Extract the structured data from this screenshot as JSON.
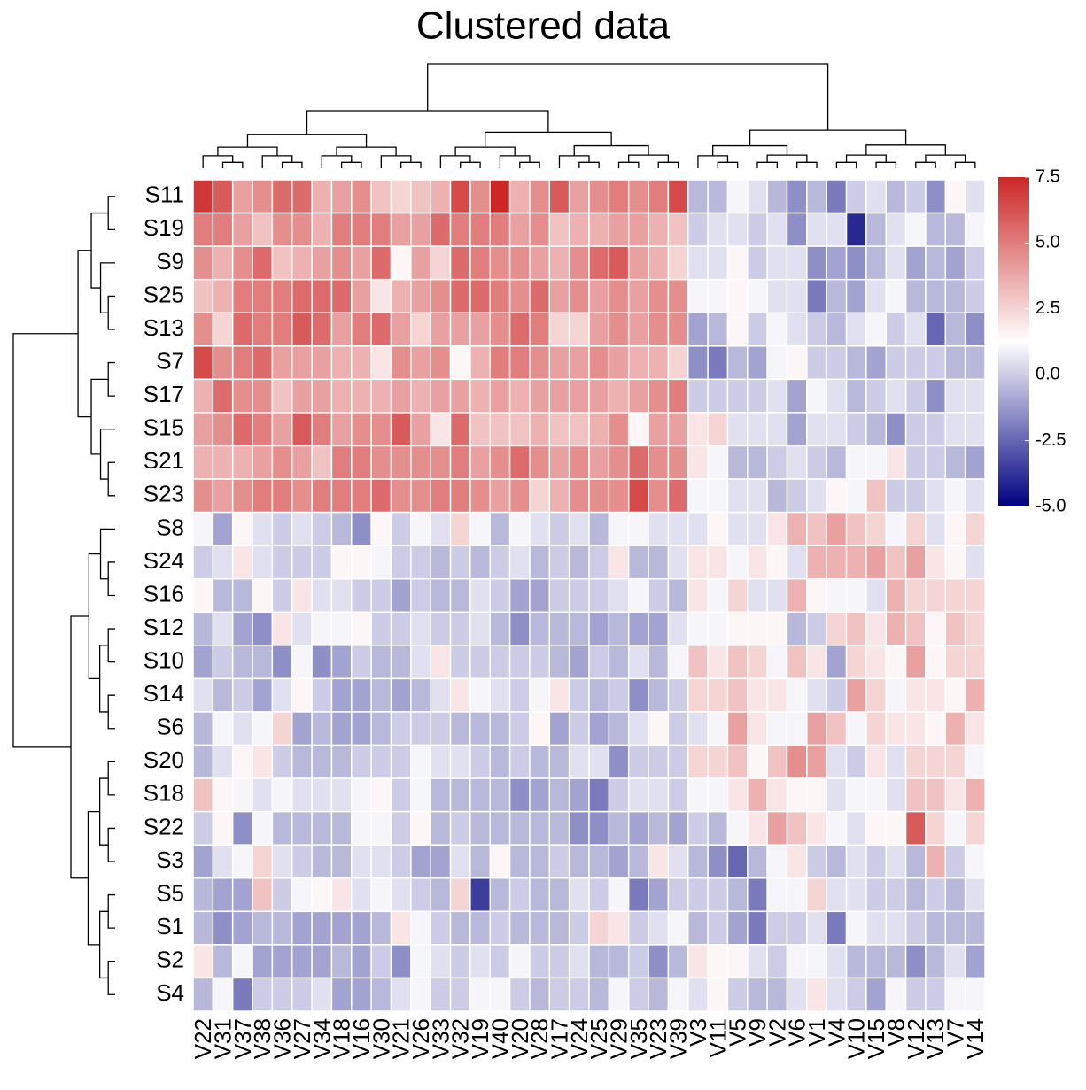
{
  "chart_data": {
    "type": "heatmap",
    "title": "Clustered data",
    "x": [
      "V22",
      "V31",
      "V37",
      "V38",
      "V36",
      "V27",
      "V34",
      "V18",
      "V16",
      "V30",
      "V21",
      "V26",
      "V33",
      "V32",
      "V19",
      "V40",
      "V20",
      "V28",
      "V17",
      "V24",
      "V25",
      "V29",
      "V35",
      "V23",
      "V39",
      "V3",
      "V11",
      "V5",
      "V9",
      "V2",
      "V6",
      "V1",
      "V4",
      "V10",
      "V15",
      "V8",
      "V12",
      "V13",
      "V7",
      "V14"
    ],
    "y": [
      "S11",
      "S19",
      "S9",
      "S25",
      "S13",
      "S7",
      "S17",
      "S15",
      "S21",
      "S23",
      "S8",
      "S24",
      "S16",
      "S12",
      "S10",
      "S14",
      "S6",
      "S20",
      "S18",
      "S22",
      "S3",
      "S5",
      "S1",
      "S2",
      "S4"
    ],
    "z": [
      [
        7,
        6,
        4,
        4.5,
        5.5,
        5.5,
        3.5,
        4,
        4.5,
        3,
        2.5,
        3,
        3.5,
        6.5,
        4.5,
        7.5,
        3.5,
        4.5,
        6,
        4,
        4.5,
        5,
        4.5,
        5,
        6.5,
        -0.5,
        -0.5,
        1,
        0.5,
        -0.5,
        -1.5,
        -0.5,
        -2,
        0,
        0.5,
        -0.5,
        0,
        -1.5,
        1.5,
        0.5
      ],
      [
        5,
        5,
        4,
        3,
        4.5,
        4.5,
        3.5,
        5,
        5,
        5,
        4,
        4,
        5.5,
        5,
        5,
        5,
        4,
        4.5,
        3,
        3.5,
        3.5,
        4,
        4,
        3.5,
        3,
        0,
        0.5,
        0.5,
        0,
        0.5,
        -1.5,
        0.5,
        0.5,
        -4,
        -0.5,
        0.5,
        1,
        -0.5,
        -0.5,
        1
      ],
      [
        4.5,
        3.5,
        4.5,
        5.5,
        3,
        3.5,
        4,
        4.5,
        4,
        5.5,
        1.5,
        4,
        2.5,
        5.5,
        5,
        4.5,
        4.5,
        4,
        3.5,
        4.5,
        5.5,
        6,
        4,
        3.5,
        2.5,
        0.5,
        0.5,
        1.5,
        0,
        0.5,
        0.5,
        -1.5,
        -1,
        -1.5,
        -0.5,
        0.5,
        -1,
        -0.5,
        -1,
        0
      ],
      [
        3,
        3.5,
        5,
        5,
        5,
        5.5,
        5.5,
        5.5,
        4,
        2,
        3.5,
        4,
        4.5,
        5.5,
        5.5,
        5,
        4.5,
        5.5,
        4,
        4.5,
        4,
        4.5,
        4,
        4.5,
        4.5,
        1,
        1,
        1.5,
        1,
        0.5,
        0.5,
        -2,
        -0.5,
        -1,
        0.5,
        1,
        -0.5,
        -0.5,
        -0.5,
        0
      ],
      [
        4.5,
        2.5,
        5.5,
        5,
        5,
        6,
        5.5,
        4,
        5,
        5.5,
        4,
        2.5,
        4,
        4,
        4,
        4.5,
        5.5,
        5,
        2.5,
        2.5,
        4,
        4.5,
        4,
        4.5,
        4.5,
        -1,
        -0.5,
        1.5,
        0,
        1,
        0.5,
        0,
        -0.5,
        0.5,
        1,
        0,
        0.5,
        -2.5,
        -0.5,
        -1.5
      ],
      [
        6.5,
        4.5,
        5,
        5.5,
        4,
        4,
        4,
        3.5,
        3.5,
        2,
        4.5,
        4,
        4.5,
        1.5,
        3.5,
        5,
        5,
        4.5,
        4,
        4,
        4.5,
        4,
        3.5,
        3.5,
        2.5,
        -1.5,
        -2,
        -0.5,
        -1,
        1,
        1.5,
        0,
        0,
        -0.5,
        -1,
        0,
        0,
        0,
        -0.5,
        -0.5
      ],
      [
        3.5,
        5.5,
        4.5,
        4.5,
        3,
        4,
        4,
        3.5,
        3.5,
        3.5,
        4,
        3.5,
        4,
        4,
        3.5,
        4,
        3.5,
        4,
        4,
        4,
        4,
        3.5,
        4,
        4.5,
        5,
        0,
        0,
        0,
        0,
        0.5,
        -1,
        1,
        0.5,
        -0.5,
        0,
        0.5,
        0,
        -1.5,
        0.5,
        0.5
      ],
      [
        4,
        4.5,
        5.5,
        5,
        4,
        6,
        5,
        4,
        4.5,
        4.5,
        6,
        4,
        2,
        5.5,
        3,
        3,
        3,
        3.5,
        3,
        3,
        3.5,
        4.5,
        1.5,
        4,
        4,
        2,
        2.5,
        0.5,
        0.5,
        0.5,
        -1,
        0.5,
        0.5,
        0,
        -0.5,
        -1.5,
        0,
        0,
        0.5,
        0.5
      ],
      [
        3.5,
        3.5,
        3.5,
        4,
        4.5,
        4,
        3,
        5,
        5,
        4.5,
        4.5,
        4.5,
        4.5,
        5,
        4,
        4.5,
        5.5,
        4.5,
        4,
        4.5,
        4,
        4.5,
        5.5,
        4.5,
        4.5,
        2,
        1,
        -0.5,
        -0.5,
        0,
        0.5,
        0,
        -0.5,
        1,
        1,
        2,
        0,
        0,
        -0.5,
        -1
      ],
      [
        4.5,
        4,
        4.5,
        5,
        5,
        4.5,
        5,
        5,
        5,
        5.5,
        4.5,
        4.5,
        5,
        5,
        4.5,
        4,
        4.5,
        2.5,
        3.5,
        4.5,
        4.5,
        4.5,
        6.5,
        4.5,
        5.5,
        1,
        1,
        0.5,
        0.5,
        -0.5,
        0,
        0.5,
        1.5,
        1,
        3,
        0,
        0,
        0.5,
        1,
        0.5
      ],
      [
        1,
        -1,
        1.5,
        0.5,
        0,
        0.5,
        0,
        -0.5,
        -1.5,
        1.5,
        0,
        1,
        0.5,
        2.5,
        1,
        -0.5,
        1,
        0.5,
        0,
        0.5,
        -0.5,
        1,
        1,
        0.5,
        0.5,
        0.5,
        1.5,
        0.5,
        0.5,
        2,
        3.5,
        3,
        4,
        3,
        2.5,
        1,
        2.5,
        0.5,
        1.5,
        2.5
      ],
      [
        0,
        0.5,
        2,
        0.5,
        0,
        0,
        0,
        1.5,
        1.5,
        1,
        0,
        0,
        -0.5,
        0,
        -0.5,
        0,
        0.5,
        -0.5,
        0,
        -0.5,
        0,
        2,
        -0.5,
        -0.5,
        0.5,
        2,
        2,
        1,
        2,
        1.5,
        0.5,
        3.5,
        3.5,
        3.5,
        4,
        3,
        4,
        2,
        1.5,
        0.5
      ],
      [
        1.5,
        -0.5,
        -0.5,
        1.5,
        0,
        2,
        0.5,
        0.5,
        0,
        0,
        -1,
        0,
        -0.5,
        -0.5,
        0.5,
        0,
        -1,
        -1,
        0,
        0,
        0,
        0.5,
        1,
        0,
        -0.5,
        2,
        1,
        2.5,
        0.5,
        0.5,
        3.5,
        1.5,
        1,
        1,
        0.5,
        3.5,
        2.5,
        2.5,
        2.5,
        2.5
      ],
      [
        -0.5,
        0.5,
        -1,
        -1.5,
        2,
        0.5,
        1,
        1,
        1.5,
        0,
        0,
        0.5,
        0,
        0,
        0.5,
        -0.5,
        -1.5,
        -0.5,
        -0.5,
        -0.5,
        -1,
        -0.5,
        -1,
        -1,
        0.5,
        1,
        1,
        1.5,
        1.5,
        1.5,
        -0.5,
        0,
        2.5,
        3,
        2,
        3.5,
        3,
        1.5,
        3,
        2.5
      ],
      [
        -1,
        0,
        -0.5,
        -0.5,
        -1.5,
        1,
        -1.5,
        -1,
        0,
        -0.5,
        -0.5,
        0.5,
        2,
        0,
        0,
        0,
        0,
        0,
        -0.5,
        -1,
        0,
        -0.5,
        0.5,
        -0.5,
        1,
        3,
        2,
        3,
        2.5,
        1,
        3,
        2,
        -1,
        2.5,
        2,
        1.5,
        4,
        1.5,
        2.5,
        2.5
      ],
      [
        0.5,
        -0.5,
        0,
        -1,
        0.5,
        1.5,
        0,
        -1,
        -1,
        -0.5,
        -1,
        -0.5,
        0.5,
        2,
        1,
        0.5,
        0,
        1,
        2,
        0,
        -0.5,
        0,
        -1.5,
        -0.5,
        0,
        2.5,
        2.5,
        3,
        2,
        2,
        1,
        0.5,
        0,
        4,
        2.5,
        1,
        2,
        2,
        1.5,
        3.5
      ],
      [
        -0.5,
        1,
        0.5,
        1,
        2.5,
        -1,
        -0.5,
        -1,
        -1,
        -0.5,
        0,
        0,
        0,
        -0.5,
        -0.5,
        -0.5,
        0,
        1.5,
        -1,
        0,
        -1,
        -0.5,
        0.5,
        1.5,
        0,
        0.5,
        1,
        4,
        2,
        1,
        1,
        4,
        3,
        1,
        2.5,
        2,
        2,
        1.5,
        3.5,
        2
      ],
      [
        -0.5,
        0.5,
        1.5,
        2,
        0,
        -0.5,
        -0.5,
        -0.5,
        0,
        0,
        0,
        1,
        0.5,
        0.5,
        0,
        -0.5,
        0,
        -0.5,
        -0.5,
        0.5,
        0.5,
        -1.5,
        0,
        0,
        0,
        2.5,
        2.5,
        3,
        1.5,
        3,
        4.5,
        4,
        0.5,
        0,
        2,
        0.5,
        2.5,
        2.5,
        2.5,
        1
      ],
      [
        3,
        1.5,
        1,
        0.5,
        1,
        0.5,
        0.5,
        0.5,
        1,
        1.5,
        0,
        1,
        -0.5,
        -0.5,
        -0.5,
        -0.5,
        -1.5,
        -1,
        -0.5,
        -1,
        -2,
        0,
        0.5,
        0.5,
        0,
        1,
        1,
        2,
        3.5,
        2,
        1.5,
        1.5,
        0.5,
        1,
        1,
        0.5,
        3,
        3,
        2,
        3.5
      ],
      [
        0,
        1.5,
        -1.5,
        1,
        -0.5,
        -0.5,
        -0.5,
        -0.5,
        1,
        1,
        0,
        1.5,
        -0.5,
        0,
        -0.5,
        -0.5,
        -0.5,
        -0.5,
        -0.5,
        -1.5,
        -1.5,
        -0.5,
        -1,
        -0.5,
        -1,
        0,
        -0.5,
        1,
        2,
        4,
        3,
        2,
        1,
        0.5,
        1.5,
        1.5,
        6,
        2.5,
        1,
        2.5
      ],
      [
        -1,
        0.5,
        1,
        2.5,
        0.5,
        0,
        -0.5,
        -0.5,
        0.5,
        0.5,
        0,
        -1,
        -1,
        0.5,
        -0.5,
        1.5,
        -0.5,
        -0.5,
        0,
        -0.5,
        -0.5,
        -1,
        -0.5,
        2,
        0.5,
        -0.5,
        -1.5,
        -2.5,
        -0.5,
        1,
        2,
        0,
        -0.5,
        0.5,
        0,
        0.5,
        -0.5,
        3.5,
        0,
        1
      ],
      [
        -0.5,
        -1,
        -1,
        3,
        0,
        1,
        1.5,
        2,
        0.5,
        1,
        0.5,
        0,
        -0.5,
        2.5,
        -3.5,
        -0.5,
        0,
        -0.5,
        -0.5,
        0.5,
        0,
        1,
        -2,
        -1,
        0,
        0,
        0,
        -0.5,
        -2,
        1,
        1,
        2.5,
        0.5,
        0.5,
        0,
        0,
        -0.5,
        0,
        -0.5,
        0.5
      ],
      [
        -0.5,
        -1.5,
        -1,
        -0.5,
        -0.5,
        -1,
        -1,
        -1,
        -1,
        -0.5,
        2,
        1,
        0,
        -0.5,
        -0.5,
        0,
        -0.5,
        -0.5,
        -0.5,
        0,
        2.5,
        2,
        0,
        0.5,
        1,
        -0.5,
        0,
        -1,
        -2,
        0,
        0,
        0.5,
        -2,
        1,
        0.5,
        0.5,
        0,
        -0.5,
        -0.5,
        -0.5
      ],
      [
        2,
        -0.5,
        1,
        -1,
        -1,
        -1,
        -1,
        -0.5,
        -1,
        0,
        -1.5,
        1,
        0.5,
        0,
        0.5,
        0,
        1,
        0,
        0,
        0.5,
        -0.5,
        -0.5,
        0,
        -1.5,
        -0.5,
        2,
        1.5,
        1.5,
        0.5,
        0,
        1,
        1,
        0.5,
        -0.5,
        -0.5,
        -0.5,
        -1.5,
        -0.5,
        0.5,
        -1
      ],
      [
        -0.5,
        1,
        -2,
        0,
        0,
        0,
        0.5,
        -1,
        -1,
        -0.5,
        0.5,
        1,
        0,
        0,
        1,
        1,
        0,
        -0.5,
        0,
        0,
        -0.5,
        1,
        0,
        -0.5,
        1,
        0.5,
        1.5,
        0,
        -0.5,
        -0.5,
        0.5,
        2,
        0.5,
        0,
        -1,
        1,
        0,
        0,
        1,
        1
      ]
    ],
    "zlim": [
      -5,
      7.5
    ],
    "zticks": [
      7.5,
      {
        "value": 5,
        "label": "5.0"
      },
      2.5,
      {
        "value": 0,
        "label": "0.0"
      },
      -2.5,
      {
        "value": -5,
        "label": "-5.0"
      }
    ],
    "colorscale": [
      "#000080",
      "#ffffff",
      "#cd2626"
    ]
  }
}
